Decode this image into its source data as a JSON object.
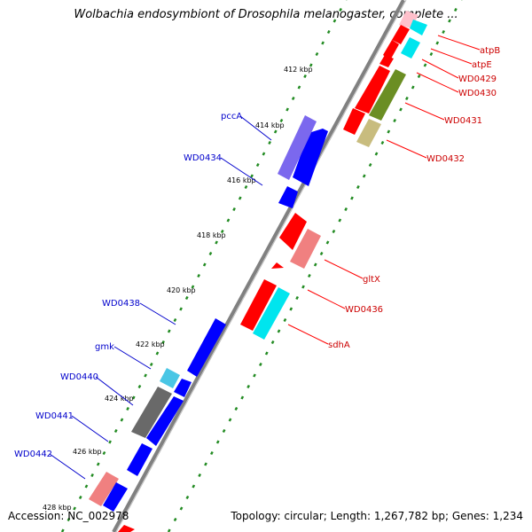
{
  "title": "Wolbachia endosymbiont of Drosophila melanogaster, complete ...",
  "footer": {
    "accession_label": "Accession:",
    "accession": "NC_002978",
    "topology": "Topology: circular; Length: 1,267,782 bp; Genes: 1,234"
  },
  "colors": {
    "plus_strand_cds": "#0000ff",
    "minus_strand_cds": "#ff0000",
    "plus_label": "#0000cc",
    "minus_label": "#cc0000",
    "cog_purple": "#7b68ee",
    "cog_light_red": "#f08080",
    "cog_cyan": "#00e5ee",
    "cog_olive": "#6b8e23",
    "cog_khaki": "#c8bc7e",
    "cog_pink": "#ffc0cb",
    "cog_gray": "#696969",
    "cog_skyblue": "#49c6e5",
    "backbone": "#808080",
    "tick_green": "#228b22"
  },
  "ticks": [
    "412 kbp",
    "414 kbp",
    "416 kbp",
    "418 kbp",
    "420 kbp",
    "422 kbp",
    "424 kbp",
    "426 kbp",
    "428 kbp"
  ],
  "left_labels": [
    "pccA",
    "WD0434",
    "WD0438",
    "gmk",
    "WD0440",
    "WD0441",
    "WD0442"
  ],
  "right_labels": [
    "atpB",
    "atpE",
    "WD0429",
    "WD0430",
    "WD0431",
    "WD0432",
    "gltX",
    "WD0436",
    "sdhA"
  ]
}
